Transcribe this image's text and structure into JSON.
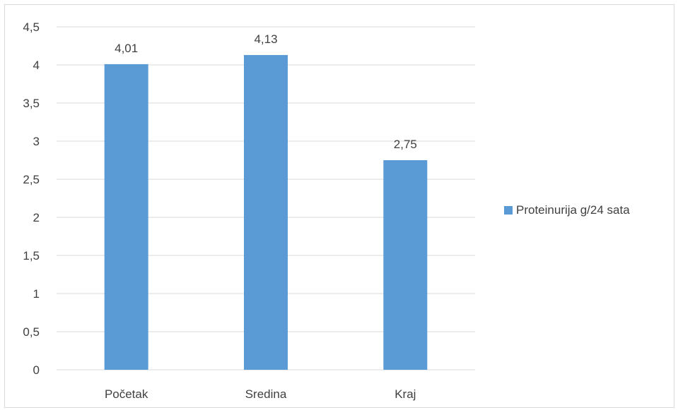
{
  "chart_data": {
    "type": "bar",
    "categories": [
      "Početak",
      "Sredina",
      "Kraj"
    ],
    "series": [
      {
        "name": "Proteinurija g/24 sata",
        "values": [
          4.01,
          4.13,
          2.75
        ],
        "data_labels": [
          "4,01",
          "4,13",
          "2,75"
        ],
        "color": "#5b9bd5"
      }
    ],
    "ylim": [
      0,
      4.5
    ],
    "y_ticks": [
      0,
      0.5,
      1,
      1.5,
      2,
      2.5,
      3,
      3.5,
      4,
      4.5
    ],
    "y_tick_labels": [
      "0",
      "0,5",
      "1",
      "1,5",
      "2",
      "2,5",
      "3",
      "3,5",
      "4",
      "4,5"
    ],
    "grid": true,
    "legend_position": "right",
    "colors": {
      "bar": "#5b9bd5",
      "grid": "#d9d9d9",
      "text": "#404040"
    }
  }
}
